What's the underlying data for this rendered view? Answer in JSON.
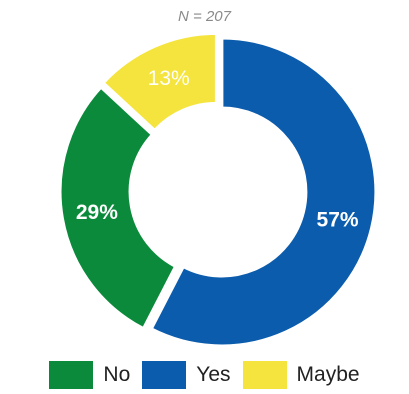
{
  "chart_data": {
    "type": "pie",
    "subtitle": "N = 207",
    "categories": [
      "Yes",
      "No",
      "Maybe"
    ],
    "values": [
      57,
      29,
      13
    ],
    "labels": [
      "57%",
      "29%",
      "13%"
    ],
    "colors": [
      "#0b5cad",
      "#0a8a3a",
      "#f4e43d"
    ],
    "label_colors": [
      "#ffffff",
      "#ffffff",
      "#ffffff"
    ],
    "legend_order": [
      1,
      0,
      2
    ],
    "legend_position": "bottom",
    "donut": true
  }
}
